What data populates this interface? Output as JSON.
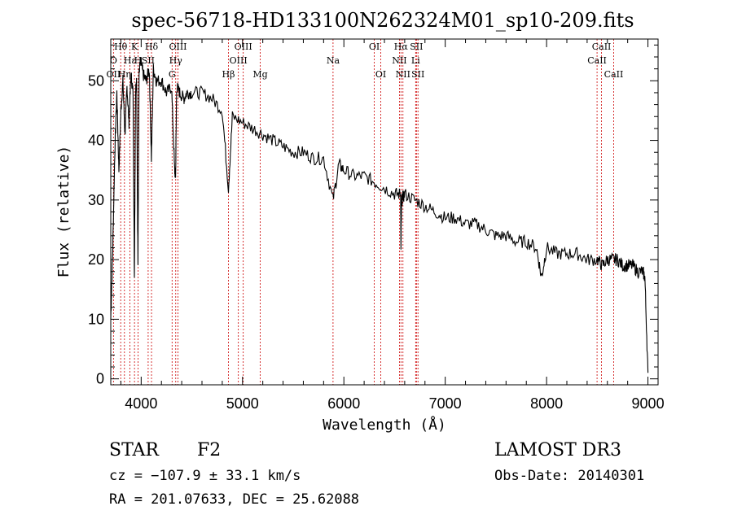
{
  "chart_data": {
    "type": "line",
    "title": "spec-56718-HD133100N262324M01_sp10-209.fits",
    "xlabel": "Wavelength (Å)",
    "ylabel": "Flux (relative)",
    "xlim": [
      3700,
      9100
    ],
    "ylim": [
      -1,
      57
    ],
    "xticks": [
      4000,
      5000,
      6000,
      7000,
      8000,
      9000
    ],
    "yticks": [
      0,
      10,
      20,
      30,
      40,
      50
    ],
    "grid": false,
    "series": [
      {
        "name": "flux",
        "x": [
          3700,
          3720,
          3740,
          3760,
          3780,
          3800,
          3820,
          3840,
          3860,
          3880,
          3900,
          3920,
          3933,
          3945,
          3955,
          3968,
          3980,
          4000,
          4020,
          4050,
          4080,
          4101,
          4120,
          4150,
          4200,
          4250,
          4300,
          4330,
          4340,
          4350,
          4380,
          4420,
          4450,
          4500,
          4600,
          4700,
          4800,
          4861,
          4900,
          5000,
          5100,
          5200,
          5300,
          5400,
          5500,
          5600,
          5700,
          5800,
          5893,
          5950,
          6000,
          6100,
          6200,
          6300,
          6400,
          6500,
          6560,
          6563,
          6570,
          6600,
          6700,
          6800,
          6900,
          7000,
          7100,
          7200,
          7300,
          7400,
          7500,
          7600,
          7700,
          7800,
          7900,
          7950,
          8000,
          8100,
          8200,
          8300,
          8400,
          8500,
          8550,
          8600,
          8650,
          8700,
          8750,
          8800,
          8850,
          8900,
          8950,
          8970,
          9000
        ],
        "y": [
          10,
          22,
          38,
          48,
          35,
          45,
          50,
          41,
          49,
          43,
          51,
          48,
          17,
          49,
          50,
          20,
          52,
          53,
          51,
          50,
          52,
          37,
          52,
          50,
          50,
          48,
          49,
          35,
          34,
          49,
          48,
          47,
          48,
          48,
          48,
          47,
          45,
          32,
          44,
          43,
          42,
          41,
          40,
          39,
          38,
          38,
          37,
          37,
          30,
          36,
          35,
          34,
          34,
          33,
          32,
          31,
          31,
          22,
          30,
          31,
          30,
          29,
          28,
          27,
          27,
          26,
          26,
          25,
          24,
          24,
          23,
          23,
          22,
          17,
          22,
          21,
          21,
          21,
          20,
          20,
          19,
          20,
          20,
          20,
          19,
          19,
          19,
          18,
          18,
          17,
          1
        ]
      }
    ],
    "line_markers": [
      {
        "label": "Hθ",
        "wavelength": 3798,
        "row": 1
      },
      {
        "label": "OII",
        "wavelength": 3727,
        "row": 3
      },
      {
        "label": "Hη",
        "wavelength": 3835,
        "row": 3
      },
      {
        "label": "O",
        "wavelength": 3727,
        "row": 2
      },
      {
        "label": "Hε",
        "wavelength": 3889,
        "row": 2
      },
      {
        "label": "K",
        "wavelength": 3934,
        "row": 1
      },
      {
        "label": "H",
        "wavelength": 3969,
        "row": 2
      },
      {
        "label": "SII",
        "wavelength": 4069,
        "row": 2
      },
      {
        "label": "Hδ",
        "wavelength": 4102,
        "row": 1
      },
      {
        "label": "OIII",
        "wavelength": 4363,
        "row": 1
      },
      {
        "label": "Hγ",
        "wavelength": 4341,
        "row": 2
      },
      {
        "label": "G",
        "wavelength": 4305,
        "row": 3
      },
      {
        "label": "Hβ",
        "wavelength": 4861,
        "row": 3
      },
      {
        "label": "OIII",
        "wavelength": 5007,
        "row": 1
      },
      {
        "label": "OIII",
        "wavelength": 4959,
        "row": 2
      },
      {
        "label": "Mg",
        "wavelength": 5175,
        "row": 3
      },
      {
        "label": "Na",
        "wavelength": 5893,
        "row": 2
      },
      {
        "label": "OI",
        "wavelength": 6300,
        "row": 1
      },
      {
        "label": "OI",
        "wavelength": 6364,
        "row": 3
      },
      {
        "label": "Hα",
        "wavelength": 6563,
        "row": 1
      },
      {
        "label": "SII",
        "wavelength": 6716,
        "row": 1
      },
      {
        "label": "NII",
        "wavelength": 6548,
        "row": 2
      },
      {
        "label": "Li",
        "wavelength": 6708,
        "row": 2
      },
      {
        "label": "NII",
        "wavelength": 6583,
        "row": 3
      },
      {
        "label": "SII",
        "wavelength": 6731,
        "row": 3
      },
      {
        "label": "CaII",
        "wavelength": 8542,
        "row": 1
      },
      {
        "label": "CaII",
        "wavelength": 8498,
        "row": 2
      },
      {
        "label": "CaII",
        "wavelength": 8662,
        "row": 3
      }
    ],
    "marker_wavelengths": [
      3727,
      3798,
      3835,
      3889,
      3934,
      3969,
      4069,
      4102,
      4305,
      4341,
      4363,
      4861,
      4959,
      5007,
      5175,
      5893,
      6300,
      6364,
      6548,
      6563,
      6583,
      6708,
      6716,
      6731,
      8498,
      8542,
      8662
    ],
    "marker_color": "#cc0000"
  },
  "info": {
    "object_class": "STAR",
    "subclass": "F2",
    "survey": "LAMOST DR3",
    "cz": "cz = −107.9 ± 33.1 km/s",
    "obs_date": "Obs-Date: 20140301",
    "coords": "RA = 201.07633, DEC =  25.62088"
  }
}
